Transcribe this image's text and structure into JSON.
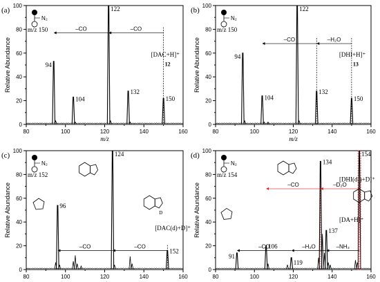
{
  "panels": [
    {
      "letter": "(a)",
      "legend_label": "N₂",
      "mz_label": "m/z 150",
      "ion_label": "[DAC+H]⁺",
      "compound_number": "12",
      "transitions": [
        {
          "label": "–CO",
          "from": 150,
          "to": 122,
          "level": 77,
          "color": "#000000",
          "dashed_drop": true
        },
        {
          "label": "–CO",
          "from": 122,
          "to": 94,
          "level": 77,
          "color": "#000000",
          "dashed_drop": false
        }
      ],
      "structures": []
    },
    {
      "letter": "(b)",
      "legend_label": "N₂",
      "mz_label": "m/z 150",
      "ion_label": "[DHI+H]⁺",
      "compound_number": "13",
      "transitions": [
        {
          "label": "–H₂O",
          "from": 150,
          "to": 132,
          "level": 68,
          "color": "#000000",
          "dashed_drop": true
        },
        {
          "label": "–CO",
          "from": 132,
          "to": 104,
          "level": 68,
          "color": "#000000",
          "dashed_drop": true
        }
      ],
      "structures": []
    },
    {
      "letter": "(c)",
      "legend_label": "N₂",
      "mz_label": "m/z 152",
      "ion_label": "[DAC(d)+D]⁺",
      "compound_number": "",
      "transitions": [
        {
          "label": "–CO",
          "from": 152,
          "to": 124,
          "level": 16,
          "color": "#000000",
          "dashed_drop": true
        },
        {
          "label": "–CO",
          "from": 124,
          "to": 96,
          "level": 16,
          "color": "#000000",
          "dashed_drop": false
        }
      ],
      "structures": [
        {
          "text": "D",
          "dx": 0,
          "dy": 0
        }
      ]
    },
    {
      "letter": "(d)",
      "legend_label": "N₂",
      "mz_label": "m/z 154",
      "ion_label": "[DA+H]⁺",
      "compound_number": "",
      "ion_label_2": "[DHI(d₃)+D]⁺",
      "transitions": [
        {
          "label": "–D₂O",
          "from": 154,
          "to": 134,
          "level": 68,
          "color": "#d62728",
          "dashed_drop": true
        },
        {
          "label": "–CO",
          "from": 134,
          "to": 106,
          "level": 68,
          "color": "#d62728",
          "dashed_drop": true
        },
        {
          "label": "–NH₃",
          "from": 154,
          "to": 137,
          "level": 16,
          "color": "#000000",
          "dashed_drop": false
        },
        {
          "label": "–H₂O",
          "from": 137,
          "to": 119,
          "level": 16,
          "color": "#000000",
          "dashed_drop": false
        },
        {
          "label": "–CO",
          "from": 119,
          "to": 91,
          "level": 16,
          "color": "#000000",
          "dashed_drop": false
        }
      ],
      "structures": []
    }
  ],
  "chart_data": [
    {
      "type": "line",
      "xlabel": "m/z",
      "ylabel": "Relative Abundance",
      "xlim": [
        80,
        160
      ],
      "ylim": [
        0,
        100
      ],
      "xticks": [
        80,
        100,
        120,
        140,
        160
      ],
      "yticks": [
        0,
        20,
        40,
        60,
        80,
        100
      ],
      "peaks": [
        {
          "x": 94,
          "y": 53,
          "label": "94"
        },
        {
          "x": 104,
          "y": 23,
          "label": "104"
        },
        {
          "x": 122,
          "y": 100,
          "label": "122"
        },
        {
          "x": 132,
          "y": 28,
          "label": "132"
        },
        {
          "x": 150,
          "y": 22,
          "label": "150"
        }
      ],
      "minor_peaks": [
        {
          "x": 95,
          "y": 3
        },
        {
          "x": 105,
          "y": 2
        },
        {
          "x": 123,
          "y": 3
        },
        {
          "x": 133,
          "y": 2
        }
      ]
    },
    {
      "type": "line",
      "xlabel": "m/z",
      "ylabel": "Relative Abundance",
      "xlim": [
        80,
        160
      ],
      "ylim": [
        0,
        100
      ],
      "xticks": [
        80,
        100,
        120,
        140,
        160
      ],
      "yticks": [
        0,
        20,
        40,
        60,
        80,
        100
      ],
      "peaks": [
        {
          "x": 94,
          "y": 60,
          "label": "94"
        },
        {
          "x": 104,
          "y": 24,
          "label": "104"
        },
        {
          "x": 122,
          "y": 100,
          "label": "122"
        },
        {
          "x": 132,
          "y": 28,
          "label": "132"
        },
        {
          "x": 150,
          "y": 22,
          "label": "150"
        }
      ],
      "minor_peaks": [
        {
          "x": 95,
          "y": 3
        },
        {
          "x": 105,
          "y": 2
        },
        {
          "x": 107,
          "y": 2
        },
        {
          "x": 123,
          "y": 3
        }
      ]
    },
    {
      "type": "line",
      "xlabel": "m/z",
      "ylabel": "Relative Abundance",
      "xlim": [
        80,
        160
      ],
      "ylim": [
        0,
        100
      ],
      "xticks": [
        80,
        100,
        120,
        140,
        160
      ],
      "yticks": [
        0,
        20,
        40,
        60,
        80,
        100
      ],
      "peaks": [
        {
          "x": 96,
          "y": 54,
          "label": "96"
        },
        {
          "x": 124,
          "y": 100,
          "label": "124"
        },
        {
          "x": 152,
          "y": 16,
          "label": "152"
        }
      ],
      "minor_peaks": [
        {
          "x": 95,
          "y": 6
        },
        {
          "x": 97,
          "y": 4
        },
        {
          "x": 104,
          "y": 7
        },
        {
          "x": 105,
          "y": 12
        },
        {
          "x": 106,
          "y": 5
        },
        {
          "x": 108,
          "y": 3
        },
        {
          "x": 125,
          "y": 4
        },
        {
          "x": 133,
          "y": 11
        },
        {
          "x": 134,
          "y": 5
        }
      ]
    },
    {
      "type": "line",
      "xlabel": "m/z",
      "ylabel": "Relative Abundance",
      "xlim": [
        80,
        160
      ],
      "ylim": [
        0,
        100
      ],
      "xticks": [
        80,
        100,
        120,
        140,
        160
      ],
      "yticks": [
        0,
        20,
        40,
        60,
        80,
        100
      ],
      "peaks": [
        {
          "x": 91,
          "y": 14,
          "label": "91"
        },
        {
          "x": 106,
          "y": 20,
          "label": "106"
        },
        {
          "x": 119,
          "y": 10,
          "label": "119"
        },
        {
          "x": 134,
          "y": 91,
          "label": "134"
        },
        {
          "x": 137,
          "y": 33,
          "label": "137"
        },
        {
          "x": 154,
          "y": 100,
          "label": "154"
        }
      ],
      "minor_peaks": [
        {
          "x": 107,
          "y": 5
        },
        {
          "x": 117,
          "y": 4
        },
        {
          "x": 133,
          "y": 10
        },
        {
          "x": 135,
          "y": 30
        },
        {
          "x": 136,
          "y": 14
        },
        {
          "x": 138,
          "y": 6
        },
        {
          "x": 139,
          "y": 4
        },
        {
          "x": 152,
          "y": 8
        },
        {
          "x": 153,
          "y": 6
        }
      ]
    }
  ]
}
